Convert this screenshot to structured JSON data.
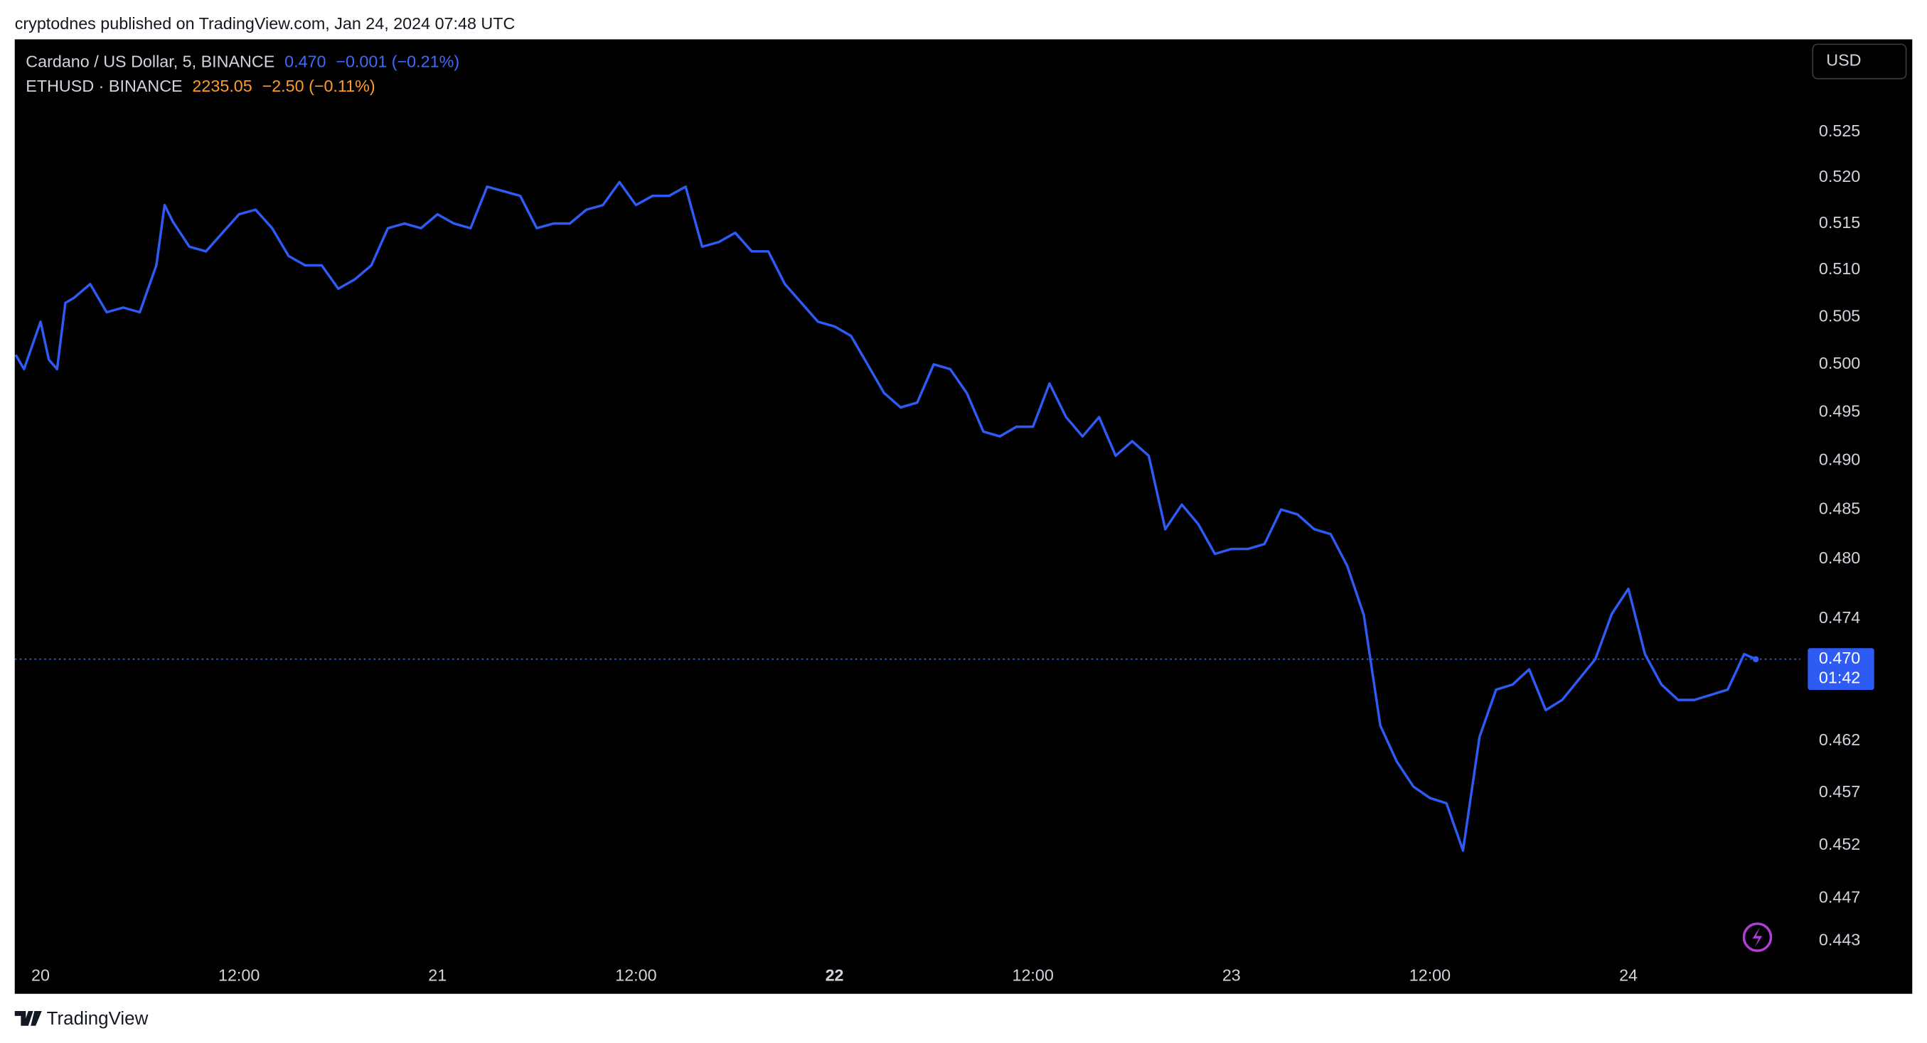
{
  "header": {
    "text": "cryptodnes published on TradingView.com, Jan 24, 2024 07:48 UTC"
  },
  "footer": {
    "brand": "TradingView"
  },
  "currency_button": "USD",
  "legend": [
    {
      "name": "Cardano / US Dollar, 5, BINANCE",
      "last": "0.470",
      "change": "−0.001 (−0.21%)",
      "color": "#3d6bff"
    },
    {
      "name": "ETHUSD · BINANCE",
      "last": "2235.05",
      "change": "−2.50 (−0.11%)",
      "color": "#ff9b28"
    }
  ],
  "chart_data": {
    "type": "line",
    "log_scale": true,
    "x": [
      -1.5,
      -1,
      0,
      0.5,
      1,
      1.5,
      2,
      3,
      4,
      5,
      6,
      7,
      7.5,
      8,
      9,
      10,
      11,
      12,
      13,
      14,
      15,
      16,
      17,
      18,
      19,
      20,
      21,
      22,
      23,
      24,
      25,
      26,
      27,
      28,
      29,
      30,
      31,
      32,
      33,
      34,
      35,
      36,
      37,
      38,
      39,
      40,
      41,
      42,
      43,
      44,
      45,
      46,
      47,
      48,
      49,
      50,
      51,
      52,
      53,
      54,
      55,
      56,
      57,
      58,
      59,
      60,
      61,
      62,
      63,
      64,
      65,
      66,
      67,
      68,
      69,
      70,
      71,
      72,
      73,
      74,
      75,
      76,
      77,
      78,
      79,
      80,
      81,
      82,
      83,
      84,
      85,
      86,
      87,
      88,
      89,
      90,
      91,
      92,
      93,
      94,
      95,
      96,
      97,
      98,
      99,
      100,
      101,
      102,
      103,
      103.7
    ],
    "series": [
      {
        "name": "Cardano / US Dollar",
        "color": "#2f5bf5",
        "values": [
          0.501,
          0.4995,
          0.5045,
          0.5005,
          0.4995,
          0.5065,
          0.507,
          0.5085,
          0.5055,
          0.506,
          0.5055,
          0.5105,
          0.517,
          0.5152,
          0.5125,
          0.512,
          0.514,
          0.516,
          0.5165,
          0.5145,
          0.5115,
          0.5105,
          0.5105,
          0.508,
          0.509,
          0.5105,
          0.5145,
          0.515,
          0.5145,
          0.516,
          0.515,
          0.5145,
          0.519,
          0.5185,
          0.518,
          0.5145,
          0.515,
          0.515,
          0.5165,
          0.517,
          0.5195,
          0.517,
          0.518,
          0.518,
          0.519,
          0.5125,
          0.513,
          0.514,
          0.512,
          0.512,
          0.5085,
          0.5065,
          0.5045,
          0.504,
          0.503,
          0.5,
          0.497,
          0.4955,
          0.496,
          0.5,
          0.4995,
          0.497,
          0.493,
          0.4925,
          0.4935,
          0.4935,
          0.498,
          0.4945,
          0.4925,
          0.4945,
          0.4905,
          0.492,
          0.4905,
          0.483,
          0.4855,
          0.4835,
          0.4805,
          0.481,
          0.481,
          0.4815,
          0.485,
          0.4845,
          0.483,
          0.4825,
          0.4793,
          0.4744,
          0.4635,
          0.46,
          0.4576,
          0.4565,
          0.456,
          0.4515,
          0.4624,
          0.467,
          0.4675,
          0.469,
          0.465,
          0.466,
          0.468,
          0.47,
          0.4745,
          0.477,
          0.4705,
          0.4675,
          0.466,
          0.466,
          0.4665,
          0.467,
          0.4705,
          0.47
        ]
      }
    ],
    "xlim": [
      -1.56,
      106.4
    ],
    "xticks": [
      {
        "value": 0,
        "label": "20"
      },
      {
        "value": 12,
        "label": "12:00"
      },
      {
        "value": 24,
        "label": "21"
      },
      {
        "value": 36,
        "label": "12:00"
      },
      {
        "value": 48,
        "label": "22"
      },
      {
        "value": 60,
        "label": "12:00"
      },
      {
        "value": 72,
        "label": "23"
      },
      {
        "value": 84,
        "label": "12:00"
      },
      {
        "value": 96,
        "label": "24"
      }
    ],
    "ylim": [
      0.4413,
      0.5353
    ],
    "yticks": [
      0.525,
      {
        "value": 0.52,
        "label": "0.520"
      },
      0.515,
      {
        "value": 0.51,
        "label": "0.510"
      },
      0.505,
      {
        "value": 0.5,
        "label": "0.500"
      },
      0.495,
      {
        "value": 0.49,
        "label": "0.490"
      },
      0.485,
      {
        "value": 0.48,
        "label": "0.480"
      },
      0.474,
      0.462,
      0.457,
      0.452,
      0.447,
      0.443
    ],
    "price_label": {
      "value": 0.47,
      "label": "0.470",
      "countdown": "01:42"
    }
  }
}
